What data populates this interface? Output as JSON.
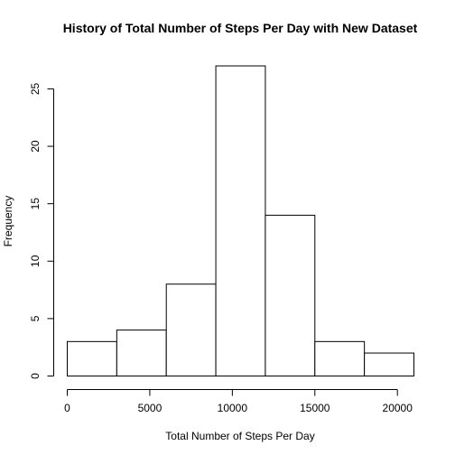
{
  "chart_data": {
    "type": "bar",
    "subtype": "histogram",
    "title": "History of Total Number of Steps Per Day with New Dataset",
    "xlabel": "Total Number of Steps Per Day",
    "ylabel": "Frequency",
    "bins": [
      {
        "start": 0,
        "end": 3000,
        "count": 3
      },
      {
        "start": 3000,
        "end": 6000,
        "count": 4
      },
      {
        "start": 6000,
        "end": 9000,
        "count": 8
      },
      {
        "start": 9000,
        "end": 12000,
        "count": 27
      },
      {
        "start": 12000,
        "end": 15000,
        "count": 14
      },
      {
        "start": 15000,
        "end": 18000,
        "count": 3
      },
      {
        "start": 18000,
        "end": 21000,
        "count": 2
      }
    ],
    "xlim": [
      0,
      21000
    ],
    "ylim": [
      0,
      27
    ],
    "x_ticks": [
      0,
      5000,
      10000,
      15000,
      20000
    ],
    "y_ticks": [
      0,
      5,
      10,
      15,
      20,
      25
    ],
    "grid": false,
    "legend": "none",
    "bar_fill": "#ffffff",
    "bar_stroke": "#000000"
  }
}
